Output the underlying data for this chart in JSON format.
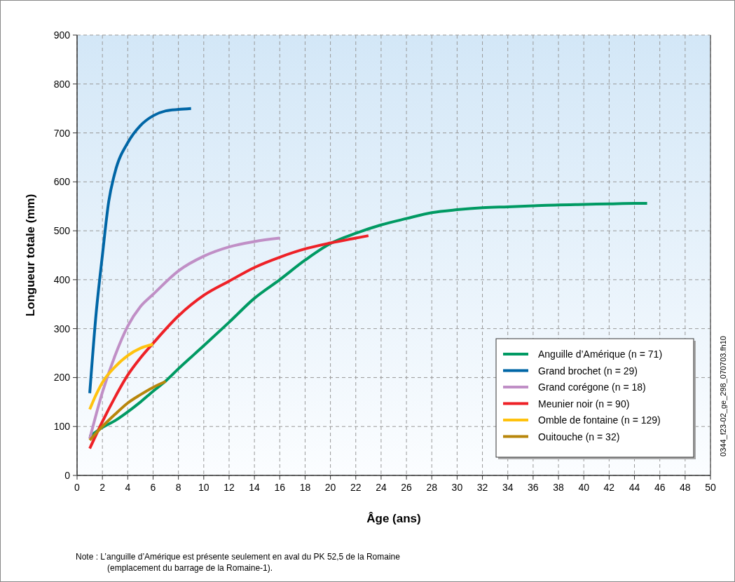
{
  "chart_data": {
    "type": "line",
    "xlabel": "Âge (ans)",
    "ylabel": "Longueur totale (mm)",
    "xlim": [
      0,
      50
    ],
    "ylim": [
      0,
      900
    ],
    "xticks": [
      0,
      2,
      4,
      6,
      8,
      10,
      12,
      14,
      16,
      18,
      20,
      22,
      24,
      26,
      28,
      30,
      32,
      34,
      36,
      38,
      40,
      42,
      44,
      46,
      48,
      50
    ],
    "yticks": [
      0,
      100,
      200,
      300,
      400,
      500,
      600,
      700,
      800,
      900
    ],
    "grid": true,
    "legend": "bottom right",
    "line_style": "solid",
    "annotations": [
      "Note : L’anguille d’Amérique est présente seulement en aval du PK 52,5 de la Romaine",
      "(emplacement du barrage de la Romaine-1).",
      "0344_f23-02_ge_298_070703.fh10"
    ],
    "series": [
      {
        "name": "Anguille d’Amérique (n = 71)",
        "color": "#009a63",
        "x": [
          1,
          2,
          3,
          4,
          5,
          6,
          7,
          8,
          10,
          12,
          14,
          16,
          18,
          20,
          22,
          24,
          26,
          28,
          30,
          32,
          34,
          36,
          38,
          40,
          42,
          44,
          45
        ],
        "values": [
          80,
          98,
          112,
          130,
          150,
          172,
          193,
          218,
          265,
          313,
          362,
          400,
          440,
          474,
          495,
          512,
          525,
          537,
          543,
          547,
          549,
          551,
          553,
          554,
          555,
          556,
          556
        ]
      },
      {
        "name": "Grand brochet (n = 29)",
        "color": "#0066a6",
        "x": [
          1,
          1.5,
          2,
          2.5,
          3,
          4,
          5,
          6,
          7,
          8,
          9
        ],
        "values": [
          168,
          330,
          450,
          560,
          620,
          680,
          715,
          735,
          745,
          748,
          750
        ]
      },
      {
        "name": "Grand corégone (n = 18)",
        "color": "#c08fc6",
        "x": [
          1,
          2,
          3,
          4,
          5,
          6,
          8,
          10,
          12,
          14,
          16
        ],
        "values": [
          75,
          170,
          245,
          305,
          345,
          370,
          418,
          448,
          467,
          478,
          485
        ]
      },
      {
        "name": "Meunier noir (n = 90)",
        "color": "#ee2127",
        "x": [
          1,
          2,
          3,
          4,
          5,
          6,
          8,
          10,
          12,
          14,
          16,
          18,
          20,
          22,
          23
        ],
        "values": [
          55,
          110,
          160,
          205,
          240,
          270,
          326,
          368,
          397,
          425,
          446,
          463,
          475,
          485,
          490
        ]
      },
      {
        "name": "Omble de fontaine (n = 129)",
        "color": "#ffc20e",
        "x": [
          1,
          1.5,
          2,
          3,
          4,
          5,
          6
        ],
        "values": [
          135,
          165,
          190,
          222,
          245,
          260,
          268
        ]
      },
      {
        "name": "Ouitouche (n = 32)",
        "color": "#b8860b",
        "x": [
          1,
          2,
          3,
          4,
          5,
          6,
          7
        ],
        "values": [
          72,
          100,
          125,
          148,
          165,
          180,
          192
        ]
      }
    ]
  }
}
